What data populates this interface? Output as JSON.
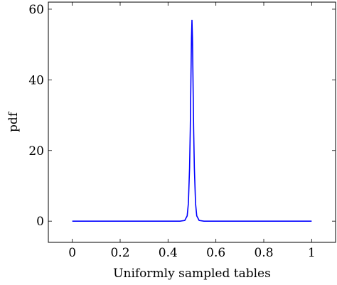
{
  "chart_data": {
    "type": "line",
    "title": "",
    "xlabel": "Uniformly sampled tables",
    "ylabel": "pdf",
    "xlim": [
      -0.1,
      1.1
    ],
    "ylim": [
      -6,
      62
    ],
    "xticks": [
      0,
      0.2,
      0.4,
      0.6,
      0.8,
      1
    ],
    "xtick_labels": [
      "0",
      "0.2",
      "0.4",
      "0.6",
      "0.8",
      "1"
    ],
    "yticks": [
      0,
      20,
      40,
      60
    ],
    "ytick_labels": [
      "0",
      "20",
      "40",
      "60"
    ],
    "grid": false,
    "legend": "none",
    "series_color": "#0000ff",
    "series": [
      {
        "x": [
          0,
          0.1,
          0.2,
          0.3,
          0.4,
          0.45,
          0.47,
          0.48,
          0.485,
          0.49,
          0.493,
          0.496,
          0.498,
          0.5,
          0.502,
          0.504,
          0.507,
          0.51,
          0.515,
          0.52,
          0.53,
          0.55,
          0.6,
          0.7,
          0.8,
          0.9,
          1
        ],
        "y": [
          0,
          0,
          0,
          0,
          0,
          0,
          0.2,
          1.5,
          5,
          15,
          26,
          42,
          52,
          57,
          52,
          42,
          26,
          15,
          5,
          1.5,
          0.2,
          0,
          0,
          0,
          0,
          0,
          0
        ]
      }
    ]
  }
}
